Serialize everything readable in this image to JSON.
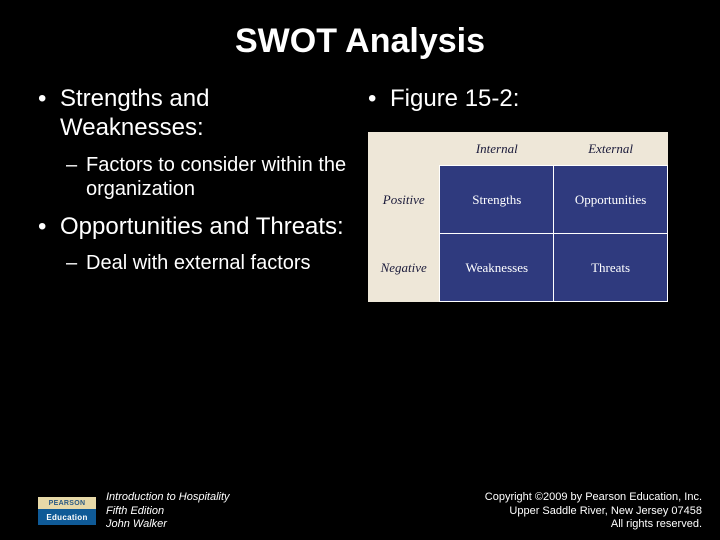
{
  "title": "SWOT Analysis",
  "left": {
    "b1": "Strengths and Weaknesses:",
    "b1sub": "Factors to consider within the organization",
    "b2": "Opportunities and Threats:",
    "b2sub": "Deal with external factors"
  },
  "right": {
    "b1": "Figure 15-2:"
  },
  "swot": {
    "col_headers": [
      "Internal",
      "External"
    ],
    "row_labels": [
      "Positive",
      "Negative"
    ],
    "cells": [
      [
        "Strengths",
        "Opportunities"
      ],
      [
        "Weaknesses",
        "Threats"
      ]
    ],
    "quad_bg": "#2f3a7e",
    "quad_border": "#ffffff",
    "figure_bg": "#eee7d8",
    "label_color": "#1a1a3a"
  },
  "footer": {
    "logo_top": "PEARSON",
    "logo_bottom": "Education",
    "book_title": "Introduction to Hospitality",
    "book_edition": "Fifth Edition",
    "book_author": "John Walker",
    "copyright_line1": "Copyright ©2009 by Pearson Education, Inc.",
    "copyright_line2": "Upper Saddle River, New Jersey 07458",
    "copyright_line3": "All rights reserved."
  },
  "colors": {
    "slide_bg": "#000000",
    "text": "#ffffff"
  }
}
